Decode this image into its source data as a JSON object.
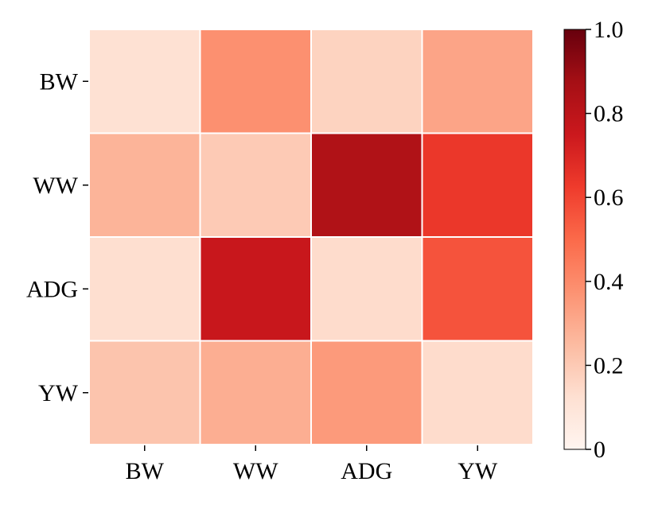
{
  "chart_data": {
    "type": "heatmap",
    "title": "",
    "xlabel": "",
    "ylabel": "",
    "x_categories": [
      "BW",
      "WW",
      "ADG",
      "YW"
    ],
    "y_categories": [
      "BW",
      "WW",
      "ADG",
      "YW"
    ],
    "values": [
      [
        0.12,
        0.38,
        0.17,
        0.32
      ],
      [
        0.27,
        0.2,
        0.84,
        0.64
      ],
      [
        0.13,
        0.76,
        0.14,
        0.56
      ],
      [
        0.22,
        0.29,
        0.35,
        0.14
      ]
    ],
    "colorbar": {
      "range": [
        0,
        1.0
      ],
      "ticks": [
        0,
        0.2,
        0.4,
        0.6,
        0.8,
        1.0
      ],
      "tick_labels": [
        "0",
        "0.2",
        "0.4",
        "0.6",
        "0.8",
        "1.0"
      ],
      "colormap": "Reds",
      "colors": [
        "#fff5f0",
        "#fee0d2",
        "#fcbba1",
        "#fc9272",
        "#fb6a4a",
        "#ef3b2c",
        "#cb181d",
        "#a50f15",
        "#67000d"
      ]
    },
    "grid_lines": true,
    "cell_border_color": "#ffffff"
  }
}
